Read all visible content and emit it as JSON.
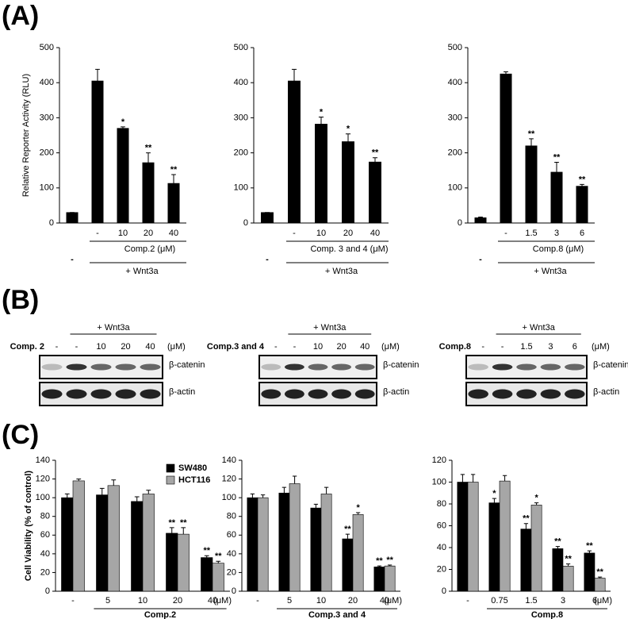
{
  "figure": {
    "panels": [
      "(A)",
      "(B)",
      "(C)"
    ],
    "blots": [
      {
        "treatment": "+ Wnt3a",
        "compound": "Comp. 2",
        "lanes": [
          "-",
          "-",
          "10",
          "20",
          "40"
        ],
        "unit": "(μM)",
        "bands": [
          "β-catenin",
          "β-actin"
        ]
      },
      {
        "treatment": "+ Wnt3a",
        "compound": "Comp.3 and 4",
        "lanes": [
          "-",
          "-",
          "10",
          "20",
          "40"
        ],
        "unit": "(μM)",
        "bands": [
          "β-catenin",
          "β-actin"
        ]
      },
      {
        "treatment": "+ Wnt3a",
        "compound": "Comp.8",
        "lanes": [
          "-",
          "-",
          "1.5",
          "3",
          "6"
        ],
        "unit": "(μM)",
        "bands": [
          "β-catenin",
          "β-actin"
        ]
      }
    ]
  },
  "chart_data": [
    {
      "type": "bar",
      "ylabel": "Relative Reporter Activity (RLU)",
      "categories": [
        null,
        "-",
        "10",
        "20",
        "40"
      ],
      "values": [
        30,
        405,
        270,
        172,
        113
      ],
      "errors": [
        0,
        33,
        4,
        28,
        25
      ],
      "annotations": [
        null,
        null,
        "*",
        "**",
        "**"
      ],
      "color": "#000000",
      "ylim": [
        0,
        500
      ],
      "yticks": [
        0,
        100,
        200,
        300,
        400,
        500
      ],
      "compound_label": "Comp.2 (μM)",
      "control_label": "-",
      "treatment_label": "+ Wnt3a"
    },
    {
      "type": "bar",
      "categories": [
        null,
        "-",
        "10",
        "20",
        "40"
      ],
      "values": [
        30,
        405,
        282,
        232,
        174
      ],
      "errors": [
        0,
        33,
        20,
        22,
        12
      ],
      "annotations": [
        null,
        null,
        "*",
        "*",
        "**"
      ],
      "color": "#000000",
      "ylim": [
        0,
        500
      ],
      "yticks": [
        0,
        100,
        200,
        300,
        400,
        500
      ],
      "compound_label": "Comp. 3 and 4 (μM)",
      "control_label": "-",
      "treatment_label": "+ Wnt3a"
    },
    {
      "type": "bar",
      "categories": [
        null,
        "-",
        "1.5",
        "3",
        "6"
      ],
      "values": [
        15,
        425,
        220,
        145,
        105
      ],
      "errors": [
        2,
        6,
        20,
        28,
        5
      ],
      "annotations": [
        null,
        null,
        "**",
        "**",
        "**"
      ],
      "color": "#000000",
      "ylim": [
        0,
        500
      ],
      "yticks": [
        0,
        100,
        200,
        300,
        400,
        500
      ],
      "compound_label": "Comp.8 (μM)",
      "control_label": "-",
      "treatment_label": "+ Wnt3a"
    },
    {
      "type": "grouped",
      "ylabel": "Cell Viability (% of control)",
      "categories": [
        "-",
        "5",
        "10",
        "20",
        "40"
      ],
      "series": [
        {
          "name": "SW480",
          "color": "#000000",
          "values": [
            100,
            103,
            96,
            62,
            36
          ],
          "errors": [
            4,
            7,
            5,
            6,
            2
          ],
          "annotations": [
            null,
            null,
            null,
            "**",
            "**"
          ]
        },
        {
          "name": "HCT116",
          "color": "#a6a6a6",
          "values": [
            118,
            113,
            104,
            61,
            30
          ],
          "errors": [
            2,
            6,
            4,
            7,
            2
          ],
          "annotations": [
            null,
            null,
            null,
            "**",
            "**"
          ]
        }
      ],
      "ylim": [
        0,
        140
      ],
      "yticks": [
        0,
        20,
        40,
        60,
        80,
        100,
        120,
        140
      ],
      "xlabel": "Comp.2",
      "unit": "(μM)",
      "legend": true
    },
    {
      "type": "grouped",
      "categories": [
        "-",
        "5",
        "10",
        "20",
        "40"
      ],
      "series": [
        {
          "color": "#000000",
          "values": [
            100,
            105,
            89,
            56,
            26
          ],
          "errors": [
            4,
            6,
            4,
            5,
            1
          ],
          "annotations": [
            null,
            null,
            null,
            "**",
            "**"
          ]
        },
        {
          "color": "#a6a6a6",
          "values": [
            100,
            115,
            104,
            82,
            27
          ],
          "errors": [
            3,
            8,
            7,
            2,
            1
          ],
          "annotations": [
            null,
            null,
            null,
            "*",
            "**"
          ]
        }
      ],
      "ylim": [
        0,
        140
      ],
      "yticks": [
        0,
        20,
        40,
        60,
        80,
        100,
        120,
        140
      ],
      "xlabel": "Comp.3 and 4",
      "unit": "(μM)"
    },
    {
      "type": "grouped",
      "categories": [
        "-",
        "0.75",
        "1.5",
        "3",
        "6"
      ],
      "series": [
        {
          "color": "#000000",
          "values": [
            100,
            81,
            57,
            39,
            35
          ],
          "errors": [
            7,
            4,
            5,
            2,
            2
          ],
          "annotations": [
            null,
            "*",
            "**",
            "**",
            "**"
          ]
        },
        {
          "color": "#a6a6a6",
          "values": [
            100,
            101,
            79,
            23,
            12
          ],
          "errors": [
            7,
            5,
            2,
            2,
            1
          ],
          "annotations": [
            null,
            null,
            "*",
            "**",
            "**"
          ]
        }
      ],
      "ylim": [
        0,
        120
      ],
      "yticks": [
        0,
        20,
        40,
        60,
        80,
        100,
        120
      ],
      "xlabel": "Comp.8",
      "unit": "(μM)"
    }
  ]
}
